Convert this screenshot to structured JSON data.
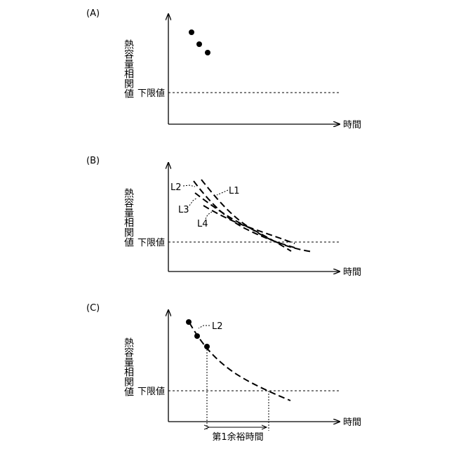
{
  "panels": [
    {
      "tag": "(A)",
      "y_axis_label": "熱容量相関値",
      "threshold_label": "下限値",
      "x_axis_label": "時間",
      "curves": []
    },
    {
      "tag": "(B)",
      "y_axis_label": "熱容量相関値",
      "threshold_label": "下限値",
      "x_axis_label": "時間",
      "curves": [
        "L1",
        "L2",
        "L3",
        "L4"
      ]
    },
    {
      "tag": "(C)",
      "y_axis_label": "熱容量相関値",
      "threshold_label": "下限値",
      "x_axis_label": "時間",
      "curves": [
        "L2"
      ],
      "margin_label": "第1余裕時間"
    }
  ],
  "colors": {
    "ink": "#000000",
    "background": "#ffffff"
  }
}
